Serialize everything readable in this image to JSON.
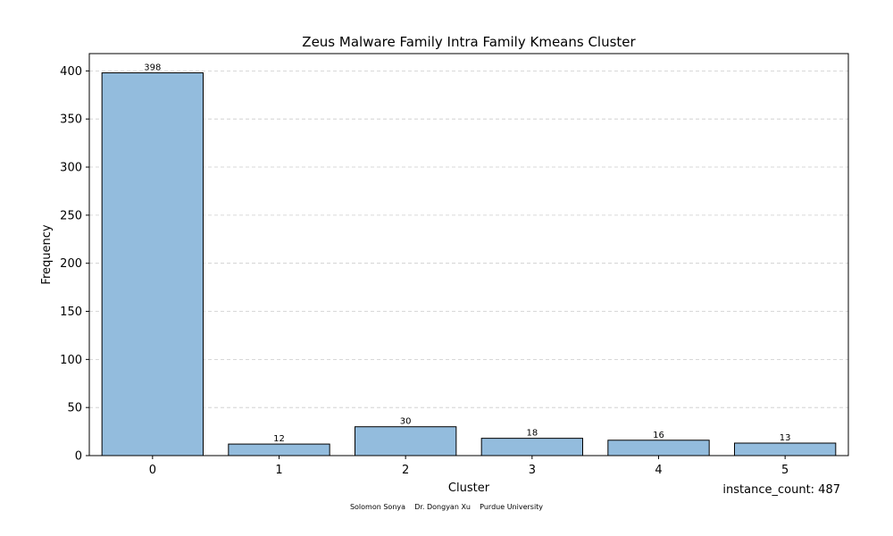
{
  "chart_data": {
    "type": "bar",
    "title": "Zeus Malware Family Intra Family Kmeans Cluster",
    "xlabel": "Cluster",
    "ylabel": "Frequency",
    "categories": [
      "0",
      "1",
      "2",
      "3",
      "4",
      "5"
    ],
    "values": [
      398,
      12,
      30,
      18,
      16,
      13
    ],
    "data_labels": [
      "398",
      "12",
      "30",
      "18",
      "16",
      "13"
    ],
    "yticks": [
      0,
      50,
      100,
      150,
      200,
      250,
      300,
      350,
      400
    ],
    "ylim": [
      0,
      418
    ],
    "grid": "horizontal dashed",
    "bar_color": "#93bcdd",
    "bar_edge_color": "#000000"
  },
  "annotations": {
    "instance_count": "instance_count: 487",
    "footer": "Solomon Sonya    Dr. Dongyan Xu    Purdue University"
  }
}
